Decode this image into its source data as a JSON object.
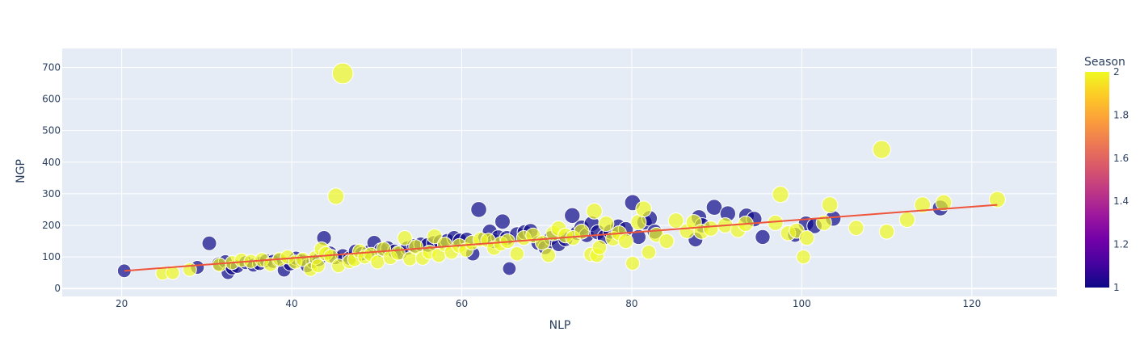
{
  "chart_data": {
    "type": "scatter",
    "xlabel": "NLP",
    "ylabel": "NGP",
    "xlim": [
      13,
      130
    ],
    "ylim": [
      -25,
      760
    ],
    "x_ticks": [
      20,
      40,
      60,
      80,
      100,
      120
    ],
    "y_ticks": [
      0,
      100,
      200,
      300,
      400,
      500,
      600,
      700
    ],
    "grid": true,
    "colorbar": {
      "title": "Season",
      "range": [
        1,
        2
      ],
      "ticks": [
        "1",
        "1.2",
        "1.4",
        "1.6",
        "1.8",
        "2"
      ],
      "colors": [
        "#0d0887",
        "#46039f",
        "#7201a8",
        "#9c179e",
        "#bd3786",
        "#d8576b",
        "#ed7953",
        "#fb9f3a",
        "#fdca26",
        "#f0f921"
      ]
    },
    "marker_opacity": 0.7,
    "trendline": {
      "x": [
        20.3,
        123
      ],
      "y": [
        56,
        265
      ],
      "color": "#ef553b"
    },
    "series": [
      {
        "season": 1,
        "points": [
          [
            20.3,
            56
          ],
          [
            28.9,
            67
          ],
          [
            30.3,
            143
          ],
          [
            31.4,
            78
          ],
          [
            32.2,
            85
          ],
          [
            32.5,
            50
          ],
          [
            33.0,
            65
          ],
          [
            33.6,
            70
          ],
          [
            34.6,
            82
          ],
          [
            35.5,
            74
          ],
          [
            36.2,
            79
          ],
          [
            37.0,
            88
          ],
          [
            37.8,
            86
          ],
          [
            38.5,
            90
          ],
          [
            39.1,
            58
          ],
          [
            39.8,
            78
          ],
          [
            40.5,
            96
          ],
          [
            41.2,
            88
          ],
          [
            41.8,
            72
          ],
          [
            42.5,
            85
          ],
          [
            43.2,
            92
          ],
          [
            43.8,
            160
          ],
          [
            44.5,
            112
          ],
          [
            45.1,
            98
          ],
          [
            46.0,
            104
          ],
          [
            46.8,
            96
          ],
          [
            47.5,
            118
          ],
          [
            48.2,
            110
          ],
          [
            49.0,
            115
          ],
          [
            49.7,
            145
          ],
          [
            50.5,
            122
          ],
          [
            51.3,
            128
          ],
          [
            52.1,
            118
          ],
          [
            52.8,
            114
          ],
          [
            53.6,
            128
          ],
          [
            54.4,
            135
          ],
          [
            55.2,
            140
          ],
          [
            56.0,
            138
          ],
          [
            56.7,
            144
          ],
          [
            57.5,
            148
          ],
          [
            58.3,
            151
          ],
          [
            59.1,
            160
          ],
          [
            59.8,
            152
          ],
          [
            60.6,
            155
          ],
          [
            61.3,
            110
          ],
          [
            62.0,
            250
          ],
          [
            62.7,
            158
          ],
          [
            63.3,
            180
          ],
          [
            63.8,
            150
          ],
          [
            64.3,
            162
          ],
          [
            64.8,
            212
          ],
          [
            65.3,
            160
          ],
          [
            65.6,
            63
          ],
          [
            66.5,
            172
          ],
          [
            67.4,
            178
          ],
          [
            68.1,
            182
          ],
          [
            69.0,
            144
          ],
          [
            69.8,
            130
          ],
          [
            70.5,
            160
          ],
          [
            71.4,
            140
          ],
          [
            72.2,
            156
          ],
          [
            73.0,
            231
          ],
          [
            73.6,
            176
          ],
          [
            74.1,
            193
          ],
          [
            74.7,
            169
          ],
          [
            75.3,
            205
          ],
          [
            76.0,
            178
          ],
          [
            76.8,
            163
          ],
          [
            77.5,
            180
          ],
          [
            78.4,
            196
          ],
          [
            79.3,
            188
          ],
          [
            80.1,
            272
          ],
          [
            80.8,
            163
          ],
          [
            81.5,
            210
          ],
          [
            82.1,
            222
          ],
          [
            82.7,
            180
          ],
          [
            87.5,
            155
          ],
          [
            87.9,
            225
          ],
          [
            88.3,
            200
          ],
          [
            89.7,
            257
          ],
          [
            91.3,
            237
          ],
          [
            93.5,
            230
          ],
          [
            94.4,
            220
          ],
          [
            95.4,
            163
          ],
          [
            99.2,
            170
          ],
          [
            100.5,
            205
          ],
          [
            101.5,
            198
          ],
          [
            103.7,
            222
          ],
          [
            116.3,
            255
          ]
        ]
      },
      {
        "season": 2,
        "points": [
          [
            24.8,
            48
          ],
          [
            26.0,
            50
          ],
          [
            28.0,
            60
          ],
          [
            31.5,
            75
          ],
          [
            33.0,
            82
          ],
          [
            34.1,
            90
          ],
          [
            35.2,
            86
          ],
          [
            36.5,
            91
          ],
          [
            37.5,
            76
          ],
          [
            38.6,
            93
          ],
          [
            39.5,
            100
          ],
          [
            40.4,
            84
          ],
          [
            41.3,
            92
          ],
          [
            42.2,
            60
          ],
          [
            42.8,
            98
          ],
          [
            43.1,
            72
          ],
          [
            43.5,
            125
          ],
          [
            44.0,
            110
          ],
          [
            44.6,
            102
          ],
          [
            45.2,
            292
          ],
          [
            45.5,
            72
          ],
          [
            46.0,
            681
          ],
          [
            46.8,
            85
          ],
          [
            47.4,
            92
          ],
          [
            48.0,
            118
          ],
          [
            48.6,
            100
          ],
          [
            49.3,
            108
          ],
          [
            50.1,
            84
          ],
          [
            50.8,
            125
          ],
          [
            51.6,
            98
          ],
          [
            52.5,
            112
          ],
          [
            53.3,
            160
          ],
          [
            53.9,
            94
          ],
          [
            54.6,
            132
          ],
          [
            55.4,
            96
          ],
          [
            56.2,
            115
          ],
          [
            56.8,
            165
          ],
          [
            57.3,
            105
          ],
          [
            58.0,
            140
          ],
          [
            58.8,
            115
          ],
          [
            59.7,
            135
          ],
          [
            60.5,
            122
          ],
          [
            61.2,
            145
          ],
          [
            62.2,
            155
          ],
          [
            63.1,
            152
          ],
          [
            63.8,
            128
          ],
          [
            64.6,
            142
          ],
          [
            65.4,
            150
          ],
          [
            66.5,
            110
          ],
          [
            67.3,
            160
          ],
          [
            68.4,
            168
          ],
          [
            69.5,
            145
          ],
          [
            70.2,
            105
          ],
          [
            70.8,
            175
          ],
          [
            71.4,
            190
          ],
          [
            72.2,
            168
          ],
          [
            73.1,
            160
          ],
          [
            74.1,
            180
          ],
          [
            75.2,
            108
          ],
          [
            75.6,
            245
          ],
          [
            75.9,
            105
          ],
          [
            76.2,
            130
          ],
          [
            77.0,
            205
          ],
          [
            77.8,
            158
          ],
          [
            78.5,
            175
          ],
          [
            79.3,
            150
          ],
          [
            80.1,
            80
          ],
          [
            80.8,
            210
          ],
          [
            81.4,
            252
          ],
          [
            82.0,
            115
          ],
          [
            82.9,
            170
          ],
          [
            84.1,
            150
          ],
          [
            85.2,
            215
          ],
          [
            86.5,
            182
          ],
          [
            87.3,
            210
          ],
          [
            88.2,
            180
          ],
          [
            89.3,
            190
          ],
          [
            91.0,
            200
          ],
          [
            92.5,
            185
          ],
          [
            93.4,
            205
          ],
          [
            96.9,
            208
          ],
          [
            97.5,
            298
          ],
          [
            98.4,
            175
          ],
          [
            99.4,
            183
          ],
          [
            100.2,
            100
          ],
          [
            100.6,
            160
          ],
          [
            102.6,
            208
          ],
          [
            103.3,
            265
          ],
          [
            106.4,
            192
          ],
          [
            109.4,
            440
          ],
          [
            110.0,
            180
          ],
          [
            112.4,
            218
          ],
          [
            114.2,
            265
          ],
          [
            116.7,
            272
          ],
          [
            123.0,
            282
          ]
        ]
      }
    ]
  }
}
